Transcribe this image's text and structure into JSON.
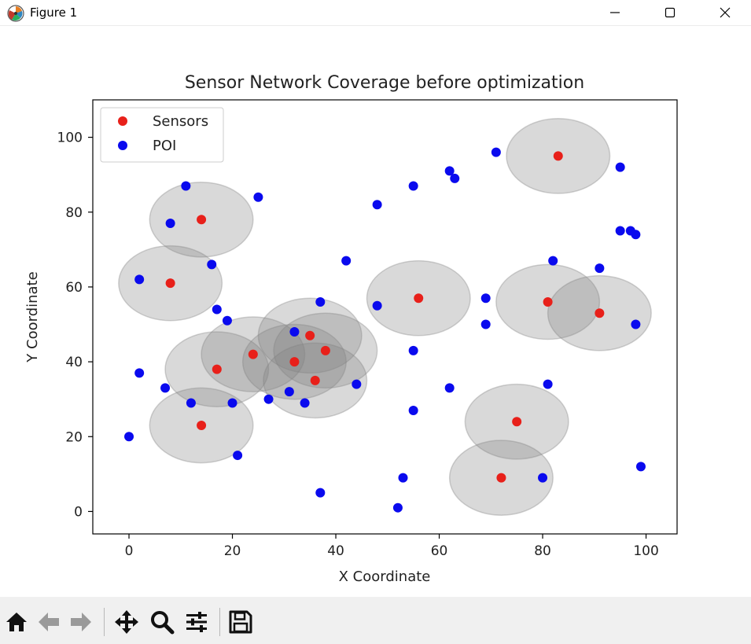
{
  "window": {
    "title": "Figure 1",
    "minimize_icon": "minimize-icon",
    "maximize_icon": "maximize-icon",
    "close_icon": "close-icon"
  },
  "toolbar": {
    "buttons": [
      {
        "name": "home-button",
        "icon": "home-icon"
      },
      {
        "name": "back-button",
        "icon": "arrow-left-icon"
      },
      {
        "name": "forward-button",
        "icon": "arrow-right-icon"
      },
      {
        "name": "pan-button",
        "icon": "move-icon"
      },
      {
        "name": "zoom-button",
        "icon": "magnifier-icon"
      },
      {
        "name": "configure-subplots-button",
        "icon": "sliders-icon"
      },
      {
        "name": "save-button",
        "icon": "floppy-disk-icon"
      }
    ]
  },
  "chart_data": {
    "type": "scatter",
    "title": "Sensor Network Coverage before optimization",
    "xlabel": "X Coordinate",
    "ylabel": "Y Coordinate",
    "xlim": [
      -7,
      106
    ],
    "ylim": [
      -6,
      110
    ],
    "xticks": [
      0,
      20,
      40,
      60,
      80,
      100
    ],
    "yticks": [
      0,
      20,
      40,
      60,
      80,
      100
    ],
    "grid": false,
    "legend": "top-left",
    "coverage_radius": 10,
    "coverage_color": "#808080",
    "series": [
      {
        "name": "Sensors",
        "color": "#e8201a",
        "points": [
          [
            14,
            78
          ],
          [
            8,
            61
          ],
          [
            17,
            38
          ],
          [
            24,
            42
          ],
          [
            14,
            23
          ],
          [
            32,
            40
          ],
          [
            35,
            47
          ],
          [
            38,
            43
          ],
          [
            36,
            35
          ],
          [
            56,
            57
          ],
          [
            83,
            95
          ],
          [
            81,
            56
          ],
          [
            91,
            53
          ],
          [
            75,
            24
          ],
          [
            72,
            9
          ]
        ]
      },
      {
        "name": "POI",
        "color": "#0a0aee",
        "points": [
          [
            11,
            87
          ],
          [
            8,
            77
          ],
          [
            25,
            84
          ],
          [
            2,
            62
          ],
          [
            16,
            66
          ],
          [
            17,
            54
          ],
          [
            19,
            51
          ],
          [
            37,
            56
          ],
          [
            32,
            48
          ],
          [
            42,
            67
          ],
          [
            48,
            82
          ],
          [
            48,
            55
          ],
          [
            55,
            87
          ],
          [
            62,
            91
          ],
          [
            63,
            89
          ],
          [
            71,
            96
          ],
          [
            95,
            92
          ],
          [
            95,
            75
          ],
          [
            97,
            75
          ],
          [
            98,
            74
          ],
          [
            82,
            67
          ],
          [
            91,
            65
          ],
          [
            69,
            57
          ],
          [
            69,
            50
          ],
          [
            98,
            50
          ],
          [
            55,
            43
          ],
          [
            2,
            37
          ],
          [
            7,
            33
          ],
          [
            12,
            29
          ],
          [
            20,
            29
          ],
          [
            21,
            15
          ],
          [
            0,
            20
          ],
          [
            27,
            30
          ],
          [
            31,
            32
          ],
          [
            34,
            29
          ],
          [
            44,
            34
          ],
          [
            55,
            27
          ],
          [
            62,
            33
          ],
          [
            81,
            34
          ],
          [
            37,
            5
          ],
          [
            52,
            1
          ],
          [
            53,
            9
          ],
          [
            80,
            9
          ],
          [
            99,
            12
          ]
        ]
      }
    ]
  }
}
